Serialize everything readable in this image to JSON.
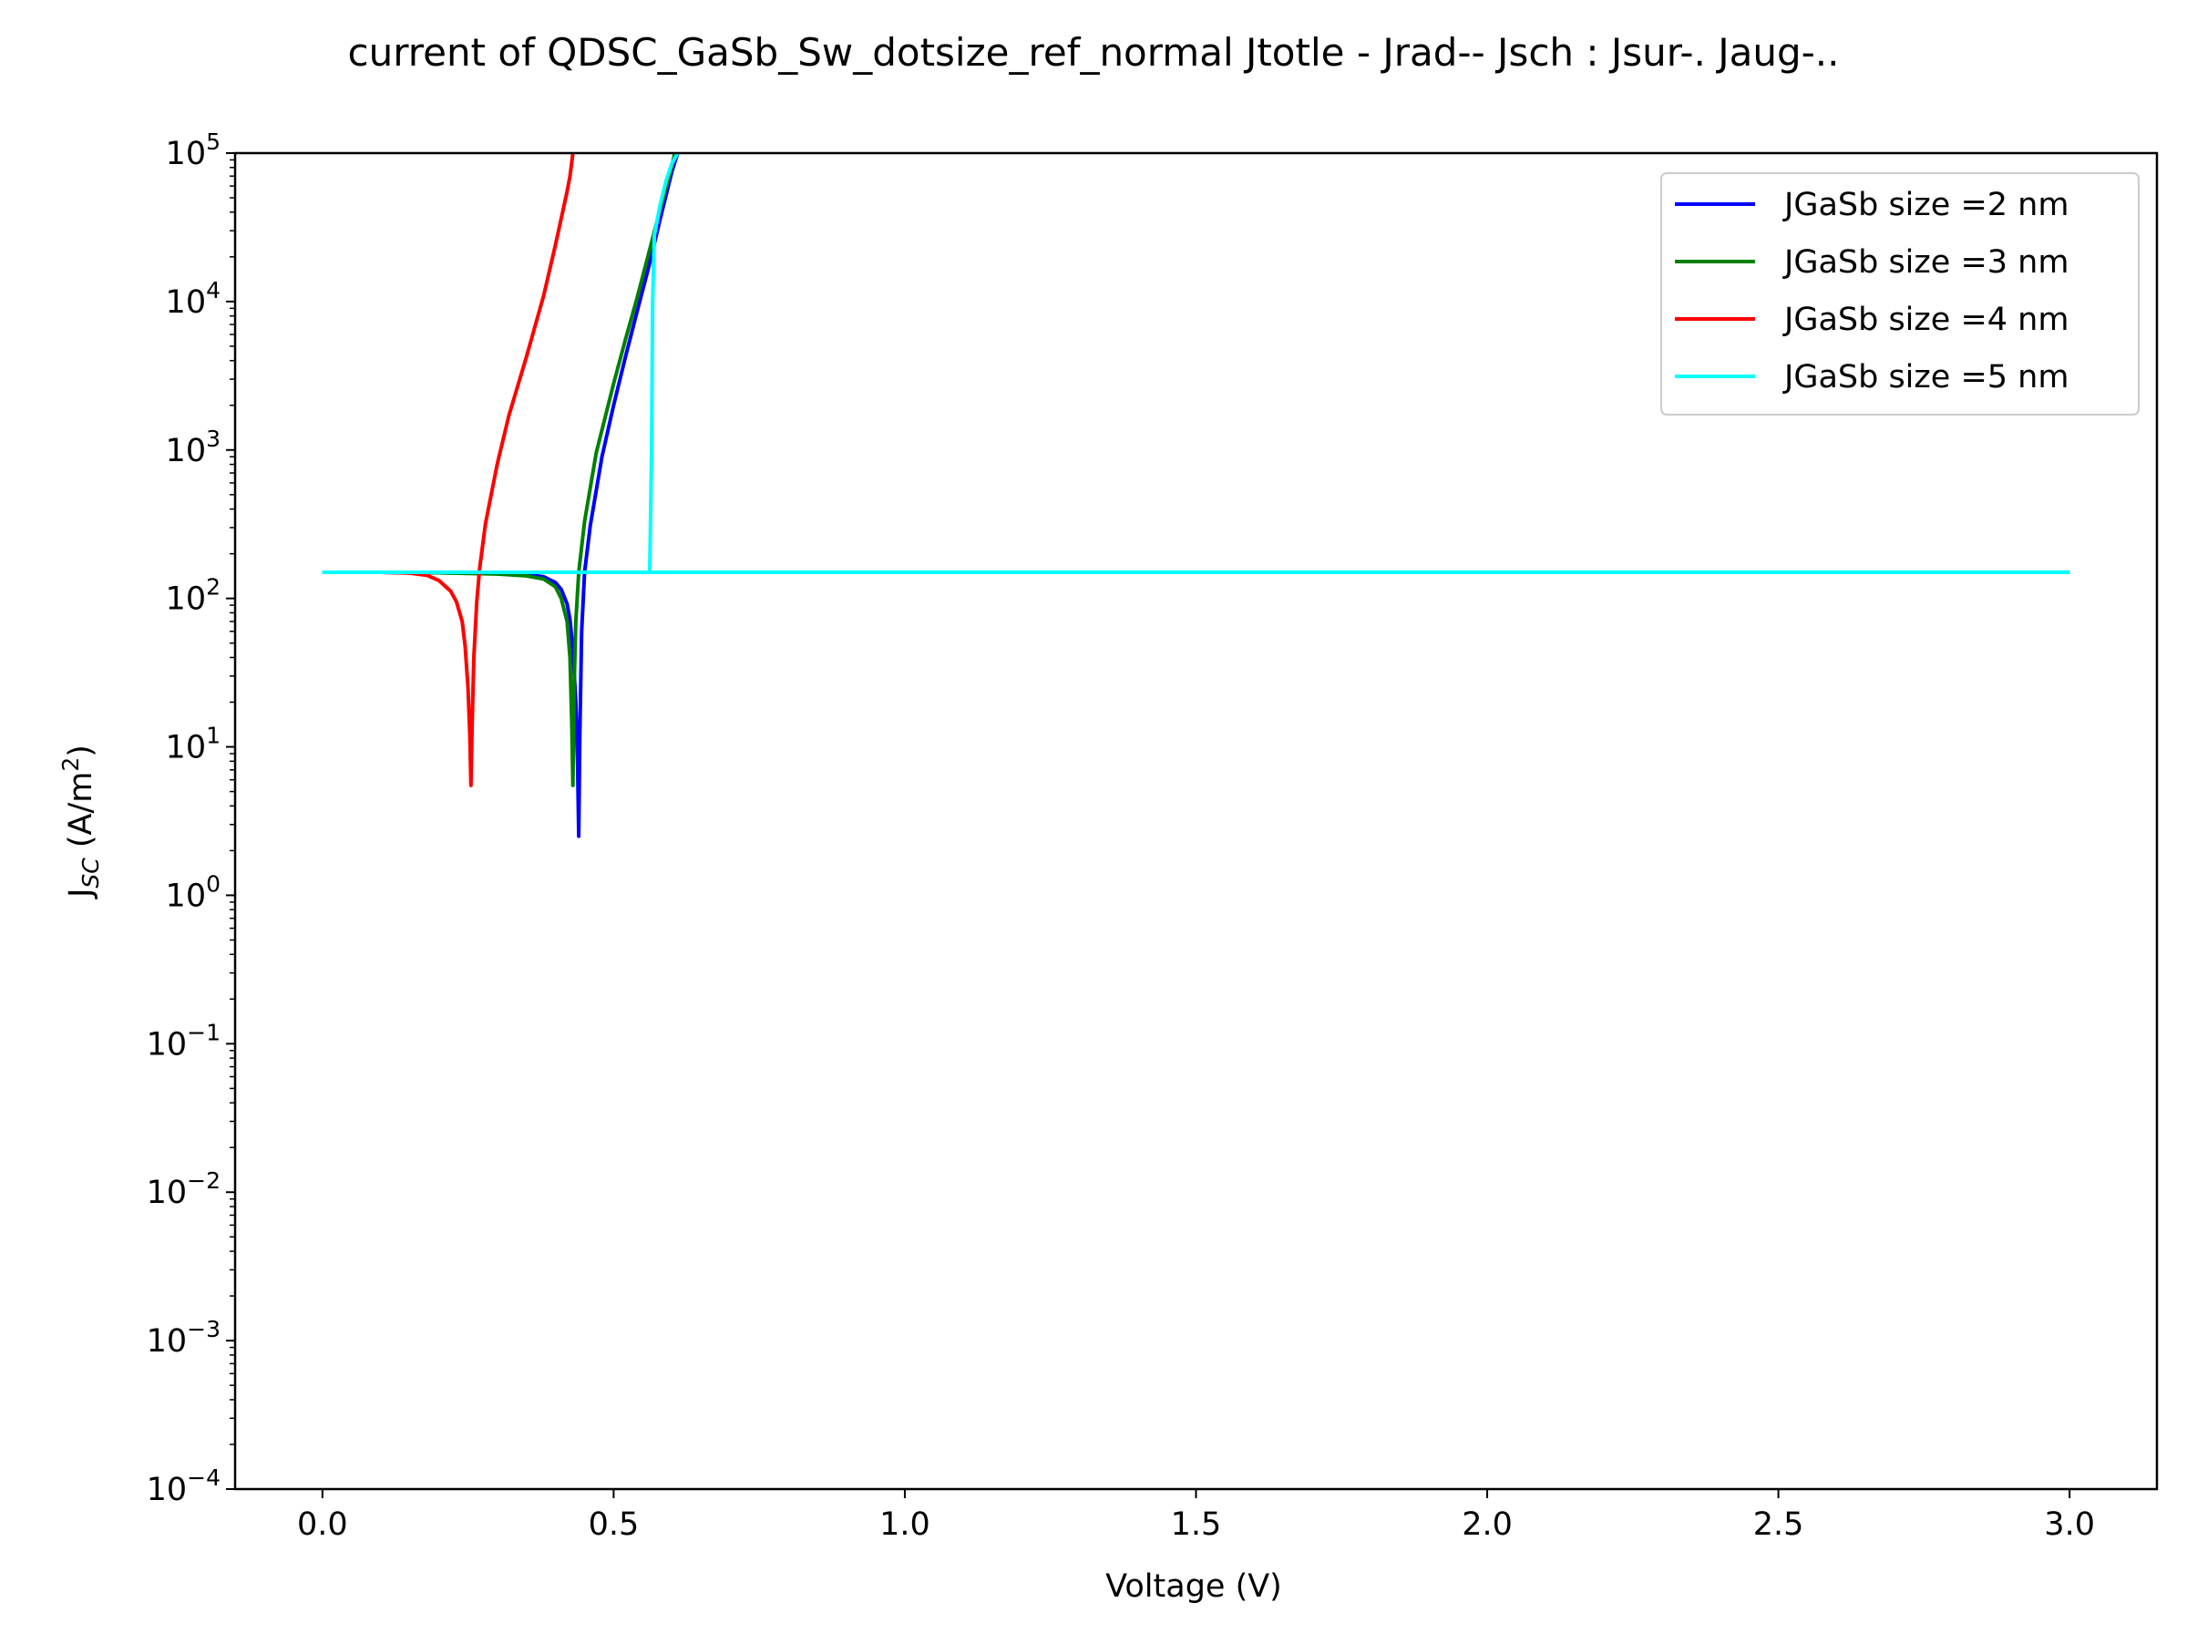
{
  "chart_data": {
    "type": "line",
    "title": "current of QDSC_GaSb_Sw_dotsize_ref_normal Jtotle - Jrad-- Jsch : Jsur-. Jaug-..",
    "xlabel": "Voltage (V)",
    "ylabel_main": "J",
    "ylabel_sub": "SC",
    "ylabel_unit_pre": " (A/m",
    "ylabel_unit_sup": "2",
    "ylabel_unit_post": ")",
    "xlim": [
      -0.15,
      3.15
    ],
    "ylim": [
      0.0001,
      100000
    ],
    "yscale": "log",
    "grid": false,
    "legend_position": "top-right",
    "x_ticks": [
      {
        "value": 0.0,
        "label": "0.0"
      },
      {
        "value": 0.5,
        "label": "0.5"
      },
      {
        "value": 1.0,
        "label": "1.0"
      },
      {
        "value": 1.5,
        "label": "1.5"
      },
      {
        "value": 2.0,
        "label": "2.0"
      },
      {
        "value": 2.5,
        "label": "2.5"
      },
      {
        "value": 3.0,
        "label": "3.0"
      }
    ],
    "y_ticks": [
      {
        "value": 0.0001,
        "base": "10",
        "exp": "−4"
      },
      {
        "value": 0.001,
        "base": "10",
        "exp": "−3"
      },
      {
        "value": 0.01,
        "base": "10",
        "exp": "−2"
      },
      {
        "value": 0.1,
        "base": "10",
        "exp": "−1"
      },
      {
        "value": 1,
        "base": "10",
        "exp": "0"
      },
      {
        "value": 10,
        "base": "10",
        "exp": "1"
      },
      {
        "value": 100,
        "base": "10",
        "exp": "2"
      },
      {
        "value": 1000,
        "base": "10",
        "exp": "3"
      },
      {
        "value": 10000,
        "base": "10",
        "exp": "4"
      },
      {
        "value": 100000,
        "base": "10",
        "exp": "5"
      }
    ],
    "series": [
      {
        "name": "JGaSb size =2 nm",
        "color": "#0000ff",
        "points": [
          [
            0.0,
            150
          ],
          [
            0.1,
            150
          ],
          [
            0.2,
            149
          ],
          [
            0.3,
            147
          ],
          [
            0.35,
            145
          ],
          [
            0.38,
            140
          ],
          [
            0.4,
            128
          ],
          [
            0.41,
            115
          ],
          [
            0.42,
            92
          ],
          [
            0.425,
            72
          ],
          [
            0.43,
            45
          ],
          [
            0.435,
            20
          ],
          [
            0.438,
            8
          ],
          [
            0.44,
            2.5
          ],
          [
            0.442,
            12
          ],
          [
            0.445,
            60
          ],
          [
            0.45,
            150
          ],
          [
            0.46,
            310
          ],
          [
            0.48,
            900
          ],
          [
            0.5,
            2000
          ],
          [
            0.52,
            4200
          ],
          [
            0.54,
            8500
          ],
          [
            0.56,
            17000
          ],
          [
            0.58,
            36000
          ],
          [
            0.6,
            75000
          ],
          [
            0.61,
            100000
          ]
        ],
        "flat_from": 0.45,
        "flat_to": 3.0,
        "flat_value": 150
      },
      {
        "name": "JGaSb size =3 nm",
        "color": "#008000",
        "points": [
          [
            0.0,
            150
          ],
          [
            0.1,
            150
          ],
          [
            0.2,
            149
          ],
          [
            0.3,
            146
          ],
          [
            0.35,
            142
          ],
          [
            0.38,
            135
          ],
          [
            0.4,
            120
          ],
          [
            0.41,
            100
          ],
          [
            0.42,
            70
          ],
          [
            0.425,
            40
          ],
          [
            0.428,
            15
          ],
          [
            0.43,
            5.5
          ],
          [
            0.432,
            25
          ],
          [
            0.435,
            70
          ],
          [
            0.44,
            150
          ],
          [
            0.45,
            330
          ],
          [
            0.47,
            950
          ],
          [
            0.5,
            2800
          ],
          [
            0.52,
            5500
          ],
          [
            0.54,
            10500
          ],
          [
            0.56,
            21000
          ],
          [
            0.58,
            42000
          ],
          [
            0.6,
            82000
          ],
          [
            0.605,
            100000
          ]
        ],
        "flat_from": 0.44,
        "flat_to": 3.0,
        "flat_value": 150
      },
      {
        "name": "JGaSb size =4 nm",
        "color": "#ff0000",
        "points": [
          [
            0.0,
            150
          ],
          [
            0.1,
            150
          ],
          [
            0.15,
            148
          ],
          [
            0.18,
            143
          ],
          [
            0.2,
            132
          ],
          [
            0.22,
            112
          ],
          [
            0.23,
            95
          ],
          [
            0.24,
            70
          ],
          [
            0.245,
            48
          ],
          [
            0.25,
            25
          ],
          [
            0.253,
            12
          ],
          [
            0.255,
            5.5
          ],
          [
            0.257,
            14
          ],
          [
            0.26,
            40
          ],
          [
            0.265,
            95
          ],
          [
            0.27,
            160
          ],
          [
            0.28,
            320
          ],
          [
            0.3,
            800
          ],
          [
            0.32,
            1700
          ],
          [
            0.35,
            4200
          ],
          [
            0.38,
            11000
          ],
          [
            0.4,
            24000
          ],
          [
            0.42,
            55000
          ],
          [
            0.425,
            70000
          ],
          [
            0.43,
            100000
          ]
        ],
        "flat_from": 0.27,
        "flat_to": 3.0,
        "flat_value": 150
      },
      {
        "name": "JGaSb size =5 nm",
        "color": "#00ffff",
        "points": [
          [
            0.0,
            150
          ],
          [
            0.56,
            150
          ],
          [
            0.562,
            150
          ],
          [
            0.565,
            1000
          ],
          [
            0.567,
            10000
          ],
          [
            0.57,
            28000
          ],
          [
            0.58,
            45000
          ],
          [
            0.59,
            65000
          ],
          [
            0.6,
            85000
          ],
          [
            0.61,
            100000
          ]
        ],
        "flat_from": 0.0,
        "flat_to": 3.0,
        "flat_value": 150
      }
    ]
  }
}
